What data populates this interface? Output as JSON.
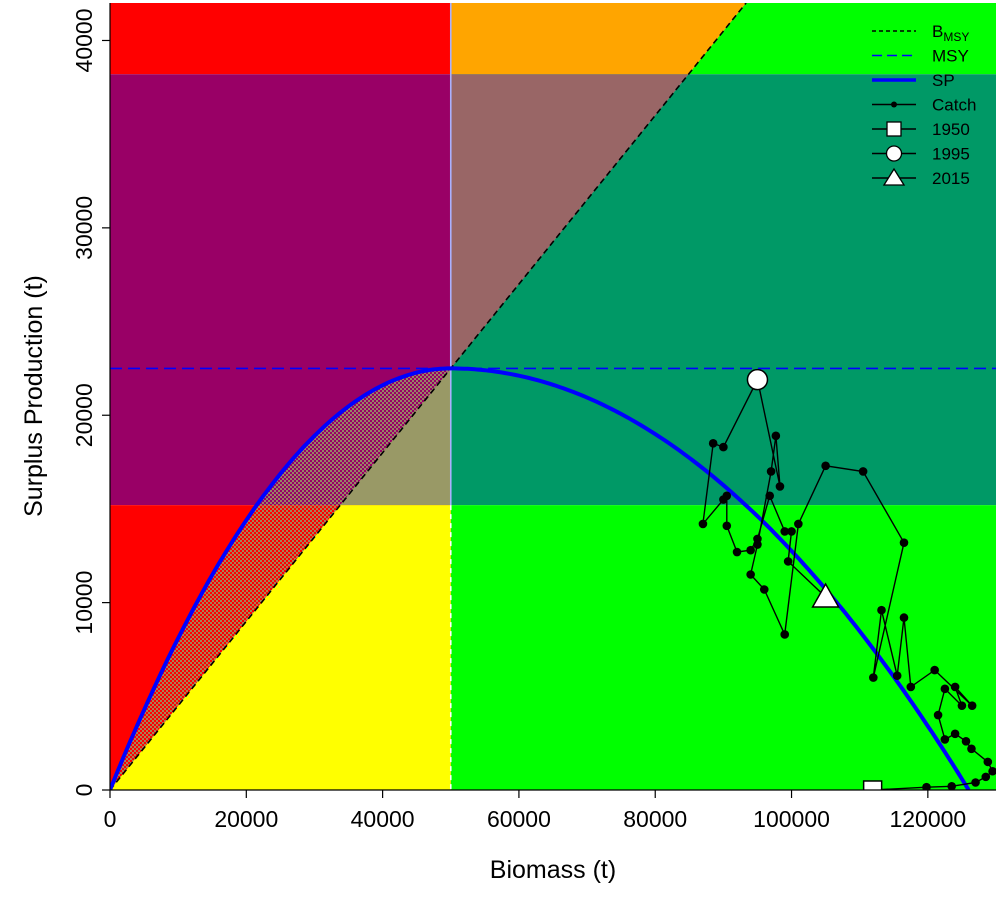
{
  "chart_data": {
    "type": "scatter",
    "xlabel": "Biomass (t)",
    "ylabel": "Surplus Production (t)",
    "xlim": [
      0,
      130000
    ],
    "ylim": [
      0,
      42000
    ],
    "x_ticks": [
      "0",
      "20000",
      "40000",
      "60000",
      "80000",
      "100000",
      "120000"
    ],
    "y_ticks": [
      "0",
      "10000",
      "20000",
      "30000",
      "40000"
    ],
    "bmsy": 50000,
    "msy": 22500,
    "k": 126000,
    "bands": {
      "lower": 15200,
      "upper": 38200
    },
    "legend": {
      "position": "top-right",
      "entries": [
        {
          "label": "B",
          "sub": "MSY",
          "style": "short-dash",
          "color": "#000000"
        },
        {
          "label": "MSY",
          "style": "long-dash",
          "color": "#0000ff"
        },
        {
          "label": "SP",
          "style": "solid-thick",
          "color": "#0000ff"
        },
        {
          "label": "Catch",
          "style": "line-point",
          "color": "#000000"
        },
        {
          "label": "1950",
          "style": "square",
          "color": "#000000"
        },
        {
          "label": "1995",
          "style": "circle",
          "color": "#000000"
        },
        {
          "label": "2015",
          "style": "triangle",
          "color": "#000000"
        }
      ]
    },
    "series": [
      {
        "name": "Catch",
        "points": [
          [
            111900,
            0
          ],
          [
            119800,
            150
          ],
          [
            123500,
            200
          ],
          [
            127000,
            400
          ],
          [
            128500,
            700
          ],
          [
            129500,
            1000
          ],
          [
            128800,
            1500
          ],
          [
            126400,
            2200
          ],
          [
            125600,
            2600
          ],
          [
            124000,
            3000
          ],
          [
            122500,
            2700
          ],
          [
            121500,
            4000
          ],
          [
            122500,
            5400
          ],
          [
            125000,
            4500
          ],
          [
            124000,
            5500
          ],
          [
            126500,
            4500
          ],
          [
            121000,
            6400
          ],
          [
            117500,
            5500
          ],
          [
            116500,
            9200
          ],
          [
            115500,
            6100
          ],
          [
            113200,
            9600
          ],
          [
            112000,
            6000
          ],
          [
            116500,
            13200
          ],
          [
            110500,
            17000
          ],
          [
            105000,
            17300
          ],
          [
            101000,
            14200
          ],
          [
            99000,
            8300
          ],
          [
            96000,
            10700
          ],
          [
            94000,
            11500
          ],
          [
            95000,
            13100
          ],
          [
            97000,
            17000
          ],
          [
            97700,
            18900
          ],
          [
            98300,
            16200
          ],
          [
            95000,
            21900
          ],
          [
            90000,
            18300
          ],
          [
            88500,
            18500
          ],
          [
            87000,
            14200
          ],
          [
            90000,
            15500
          ],
          [
            90500,
            15700
          ],
          [
            90500,
            14100
          ],
          [
            92000,
            12700
          ],
          [
            94000,
            12800
          ],
          [
            95000,
            13400
          ],
          [
            96800,
            15700
          ],
          [
            99000,
            13800
          ],
          [
            100000,
            13800
          ],
          [
            99500,
            12200
          ],
          [
            105000,
            10300
          ]
        ]
      }
    ],
    "markers": [
      {
        "label": "1950",
        "shape": "square",
        "x": 111900,
        "y": 0
      },
      {
        "label": "1995",
        "shape": "circle",
        "x": 95000,
        "y": 21900
      },
      {
        "label": "2015",
        "shape": "triangle",
        "x": 105000,
        "y": 10300
      }
    ],
    "colors": {
      "red": "#ff0000",
      "orange": "#ffa500",
      "green": "#00ff00",
      "yellow": "#ffff00",
      "purple": "#990066",
      "mauve": "#996666",
      "teal": "#009966",
      "olive": "#999966",
      "sp_line": "#0000ff",
      "msy_line": "#0000ff",
      "catch": "#000000"
    }
  }
}
